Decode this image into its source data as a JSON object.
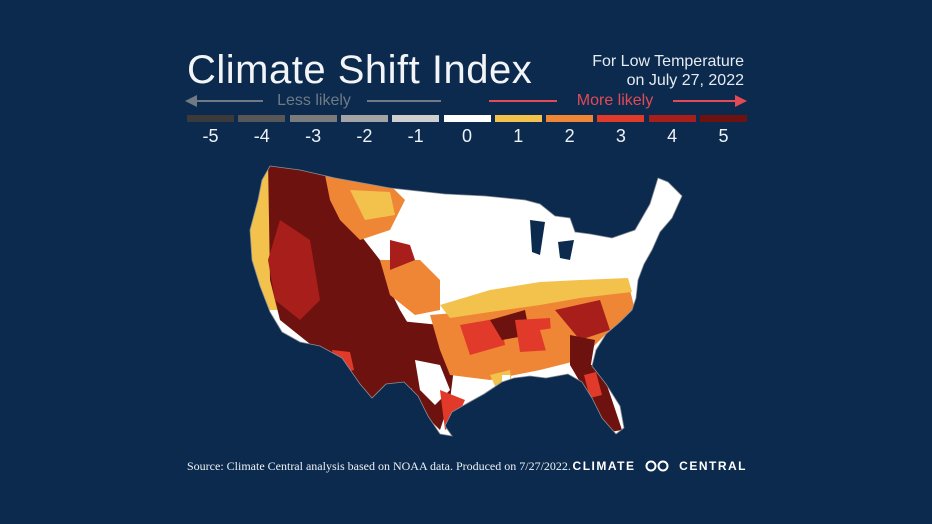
{
  "title": "Climate Shift Index",
  "subtitle_line1": "For Low Temperature",
  "subtitle_line2": "on July 27, 2022",
  "legend": {
    "less_label": "Less likely",
    "more_label": "More likely",
    "levels": [
      {
        "value": -5,
        "label": "-5",
        "color": "#3a3a3a"
      },
      {
        "value": -4,
        "label": "-4",
        "color": "#575757"
      },
      {
        "value": -3,
        "label": "-3",
        "color": "#7b7b7b"
      },
      {
        "value": -2,
        "label": "-2",
        "color": "#a4a4a4"
      },
      {
        "value": -1,
        "label": "-1",
        "color": "#cfcfcf"
      },
      {
        "value": 0,
        "label": "0",
        "color": "#ffffff"
      },
      {
        "value": 1,
        "label": "1",
        "color": "#f2c24d"
      },
      {
        "value": 2,
        "label": "2",
        "color": "#ef8635"
      },
      {
        "value": 3,
        "label": "3",
        "color": "#e23a2a"
      },
      {
        "value": 4,
        "label": "4",
        "color": "#a71e1a"
      },
      {
        "value": 5,
        "label": "5",
        "color": "#6e1210"
      }
    ],
    "less_color": "#6f7a86",
    "more_color": "#e24a55"
  },
  "map": {
    "region": "Contiguous United States counties",
    "background_color": "#0b2a4d"
  },
  "footer": {
    "source": "Source: Climate Central analysis based on NOAA data. Produced on 7/27/2022.",
    "brand_left": "CLIMATE",
    "brand_right": "CENTRAL"
  }
}
